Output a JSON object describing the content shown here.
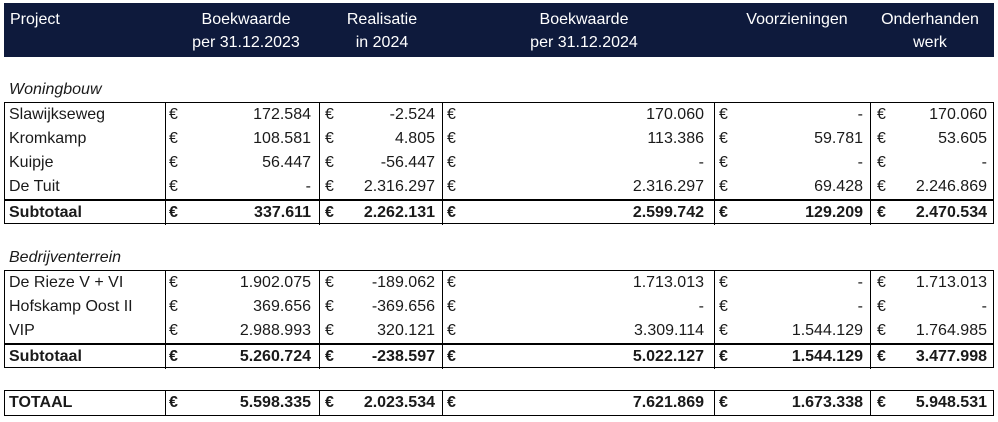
{
  "header": {
    "project": "Project",
    "bw2023_line1": "Boekwaarde",
    "bw2023_line2": "per 31.12.2023",
    "real_line1": "Realisatie",
    "real_line2": "in 2024",
    "bw2024_line1": "Boekwaarde",
    "bw2024_line2": "per 31.12.2024",
    "voorz": "Voorzieningen",
    "ohw_line1": "Onderhanden",
    "ohw_line2": "werk"
  },
  "currency": "€",
  "woningbouw": {
    "title": "Woningbouw",
    "rows": [
      {
        "name": "Slawijkseweg",
        "bw2023": "172.584",
        "real": "-2.524",
        "bw2024": "170.060",
        "voorz": "-",
        "ohw": "170.060"
      },
      {
        "name": "Kromkamp",
        "bw2023": "108.581",
        "real": "4.805",
        "bw2024": "113.386",
        "voorz": "59.781",
        "ohw": "53.605"
      },
      {
        "name": "Kuipje",
        "bw2023": "56.447",
        "real": "-56.447",
        "bw2024": "-",
        "voorz": "-",
        "ohw": "-"
      },
      {
        "name": "De Tuit",
        "bw2023": "-",
        "real": "2.316.297",
        "bw2024": "2.316.297",
        "voorz": "69.428",
        "ohw": "2.246.869"
      }
    ],
    "subtotal": {
      "name": "Subtotaal",
      "bw2023": "337.611",
      "real": "2.262.131",
      "bw2024": "2.599.742",
      "voorz": "129.209",
      "ohw": "2.470.534"
    }
  },
  "bedrijventerrein": {
    "title": "Bedrijventerrein",
    "rows": [
      {
        "name": "De Rieze V + VI",
        "bw2023": "1.902.075",
        "real": "-189.062",
        "bw2024": "1.713.013",
        "voorz": "-",
        "ohw": "1.713.013"
      },
      {
        "name": "Hofskamp Oost II",
        "bw2023": "369.656",
        "real": "-369.656",
        "bw2024": "-",
        "voorz": "-",
        "ohw": "-"
      },
      {
        "name": "VIP",
        "bw2023": "2.988.993",
        "real": "320.121",
        "bw2024": "3.309.114",
        "voorz": "1.544.129",
        "ohw": "1.764.985"
      }
    ],
    "subtotal": {
      "name": "Subtotaal",
      "bw2023": "5.260.724",
      "real": "-238.597",
      "bw2024": "5.022.127",
      "voorz": "1.544.129",
      "ohw": "3.477.998"
    }
  },
  "total": {
    "name": "TOTAAL",
    "bw2023": "5.598.335",
    "real": "2.023.534",
    "bw2024": "7.621.869",
    "voorz": "1.673.338",
    "ohw": "5.948.531"
  }
}
